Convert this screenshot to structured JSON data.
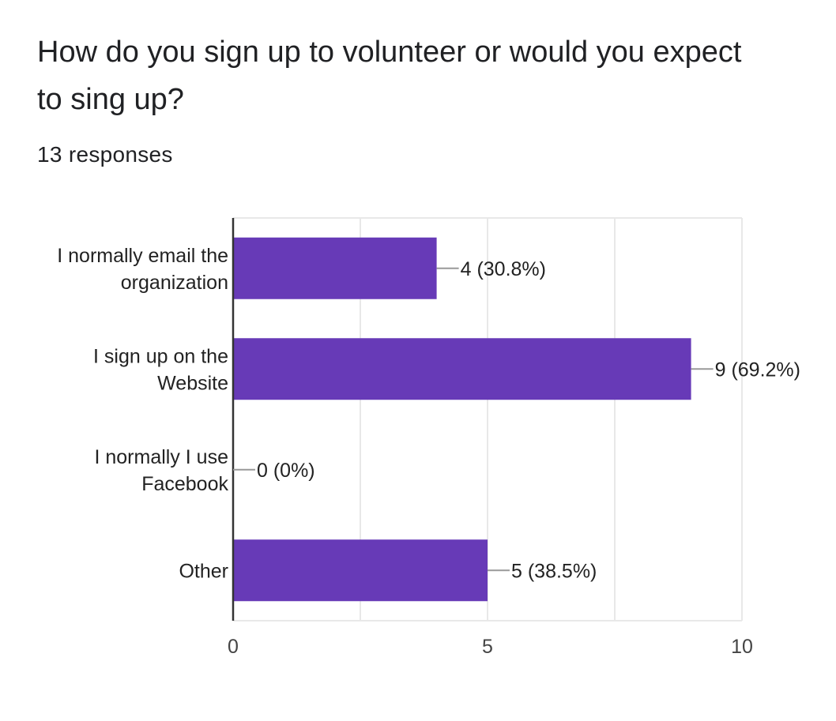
{
  "question": {
    "title": "How do you sign up to volunteer or would you expect to sing up?",
    "responses": "13 responses"
  },
  "chart_data": {
    "type": "bar",
    "orientation": "horizontal",
    "categories": [
      [
        "I normally email the",
        "organization"
      ],
      [
        "I sign up on the",
        "Website"
      ],
      [
        "I normally I use",
        "Facebook"
      ],
      [
        "Other"
      ]
    ],
    "values": [
      4,
      9,
      0,
      5
    ],
    "data_labels": [
      "4 (30.8%)",
      "9 (69.2%)",
      "0 (0%)",
      "5 (38.5%)"
    ],
    "xlim": [
      0,
      10
    ],
    "x_ticks": [
      0,
      5,
      10
    ],
    "x_tick_labels": [
      "0",
      "5",
      "10"
    ],
    "grid": true,
    "bar_color": "#673ab7",
    "gridline_color": "#e8e8e8",
    "axis_color": "#333333",
    "leader_color": "#999999"
  }
}
